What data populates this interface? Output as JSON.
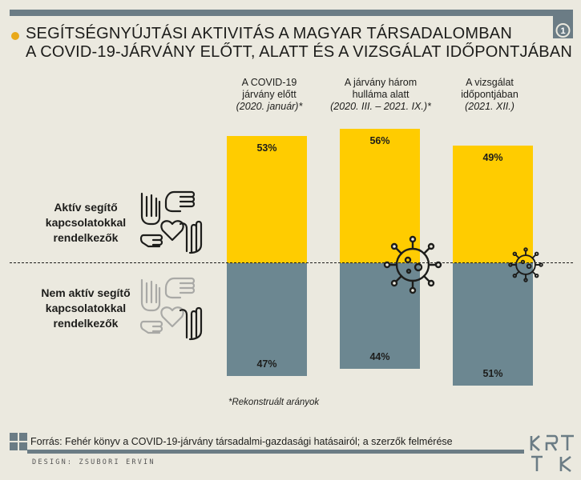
{
  "title": {
    "line1": "SEGÍTSÉGNYÚJTÁSI AKTIVITÁS A MAGYAR TÁRSADALOMBAN",
    "line2": "A COVID-19-JÁRVÁNY ELŐTT, ALATT ÉS A VIZSGÁLAT IDŐPONTJÁBAN"
  },
  "badge_number": "1",
  "colors": {
    "active": "#ffcc00",
    "inactive": "#6c8791",
    "accent_dot": "#e9a91a",
    "bar": "#6b7c85"
  },
  "chart_data": {
    "type": "bar",
    "stacked": true,
    "categories": [
      {
        "lines": [
          "A COVID-19",
          "járvány előtt"
        ],
        "period": "(2020. január)*"
      },
      {
        "lines": [
          "A járvány három",
          "hulláma alatt"
        ],
        "period": "(2020. III. – 2021. IX.)*"
      },
      {
        "lines": [
          "A vizsgálat",
          "időpontjában"
        ],
        "period": "(2021. XII.)"
      }
    ],
    "series": [
      {
        "name": "Aktív segítő kapcsolatokkal rendelkezők",
        "values": [
          53,
          56,
          49
        ],
        "labels": [
          "53%",
          "56%",
          "49%"
        ]
      },
      {
        "name": "Nem aktív segítő kapcsolatokkal rendelkezők",
        "values": [
          47,
          44,
          51
        ],
        "labels": [
          "47%",
          "44%",
          "51%"
        ]
      }
    ],
    "unit": "%",
    "legend_position": "left"
  },
  "row_labels": {
    "active": [
      "Aktív segítő",
      "kapcsolatokkal",
      "rendelkezők"
    ],
    "inactive": [
      "Nem aktív segítő",
      "kapcsolatokkal",
      "rendelkezők"
    ]
  },
  "note": "*Rekonstruált arányok",
  "source": "Forrás: Fehér könyv a COVID-19-járvány társadalmi-gazdasági hatásairól; a szerzők felmérése",
  "design_credit": "DESIGN: ZSUBORI ERVIN",
  "icons": [
    "hands-heart-icon",
    "hands-heart-faded-icon",
    "virus-icon",
    "virus-small-icon",
    "krtk-logo"
  ]
}
